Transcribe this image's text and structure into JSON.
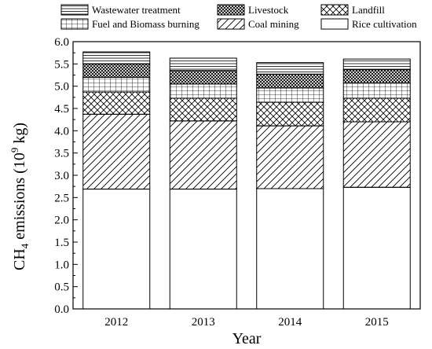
{
  "chart_data": {
    "type": "bar",
    "stacked": true,
    "categories": [
      "2012",
      "2013",
      "2014",
      "2015"
    ],
    "xlabel": "Year",
    "ylabel": {
      "prefix": "CH",
      "subscript": "4",
      "middle": " emissions (10",
      "superscript": "9",
      "suffix": " kg)"
    },
    "ylim": [
      0.0,
      6.0
    ],
    "yticks": [
      "0.0",
      "0.5",
      "1.0",
      "1.5",
      "2.0",
      "2.5",
      "3.0",
      "3.5",
      "4.0",
      "4.5",
      "5.0",
      "5.5",
      "6.0"
    ],
    "legend_position": "top",
    "series": [
      {
        "name": "Rice cultivation",
        "pattern": "blank",
        "values": [
          2.69,
          2.69,
          2.7,
          2.73
        ]
      },
      {
        "name": "Coal mining",
        "pattern": "diagonal",
        "values": [
          1.68,
          1.53,
          1.41,
          1.47
        ]
      },
      {
        "name": "Landfill",
        "pattern": "crosshatch",
        "values": [
          0.5,
          0.51,
          0.53,
          0.53
        ]
      },
      {
        "name": "Fuel and Biomass burning",
        "pattern": "grid",
        "values": [
          0.33,
          0.32,
          0.32,
          0.34
        ]
      },
      {
        "name": "Livestock",
        "pattern": "dense-crosshatch",
        "values": [
          0.3,
          0.3,
          0.31,
          0.3
        ]
      },
      {
        "name": "Wastewater treatment",
        "pattern": "horizontal",
        "values": [
          0.27,
          0.28,
          0.26,
          0.24
        ]
      }
    ]
  }
}
